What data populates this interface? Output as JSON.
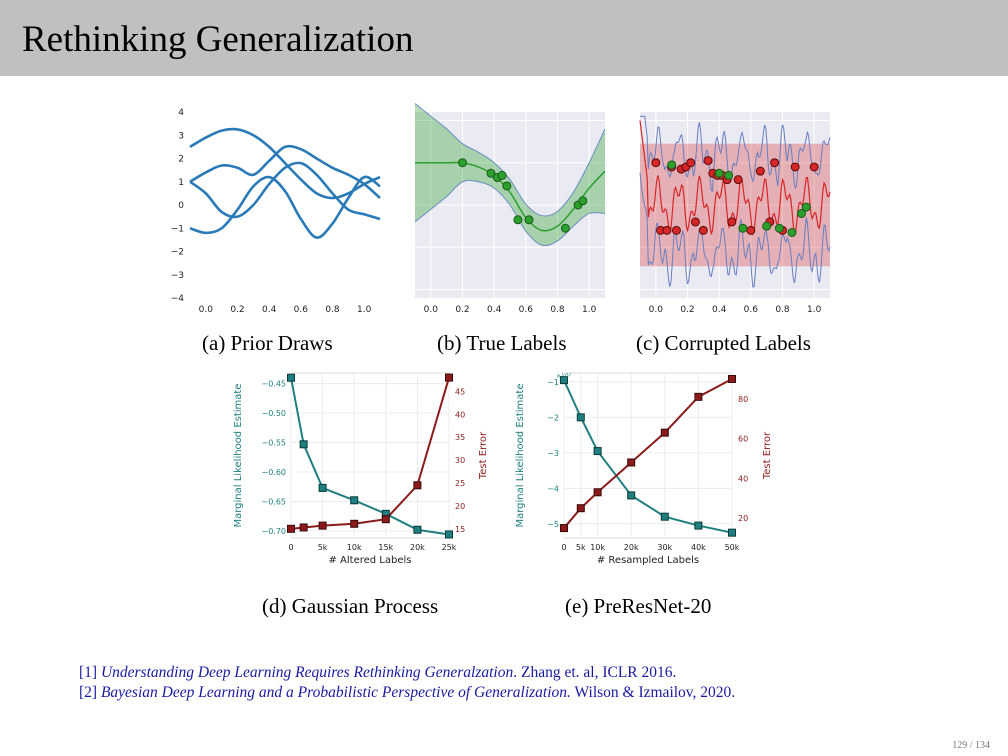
{
  "slide": {
    "title": "Rethinking Generalization",
    "page": "129 / 134"
  },
  "captions": {
    "a": "(a)  Prior Draws",
    "b": "(b)  True Labels",
    "c": "(c)  Corrupted Labels",
    "d": "(d)  Gaussian Process",
    "e": "(e)  PreResNet-20"
  },
  "references": [
    {
      "num": "[1]",
      "title": "Understanding Deep Learning Requires Rethinking Generalzation",
      "rest": ". Zhang et. al, ICLR 2016."
    },
    {
      "num": "[2]",
      "title": "Bayesian Deep Learning and a Probabilistic Perspective of Generalization.",
      "rest": " Wilson & Izmailov, 2020."
    }
  ],
  "colors": {
    "header": "#c0c0c0",
    "teal": "#1f7f7f",
    "darkred": "#8b1a1a",
    "blue": "#2a7ab8",
    "green": "#2ca02c",
    "red": "#d62728",
    "panel_bg": "#eaeaf2"
  },
  "chart_data": [
    {
      "type": "line",
      "id": "prior-draws",
      "xticks": [
        "0.0",
        "0.2",
        "0.4",
        "0.6",
        "0.8",
        "1.0"
      ],
      "yticks": [
        "4",
        "3",
        "2",
        "1",
        "0",
        "−1",
        "−2",
        "−3",
        "−4"
      ],
      "xlim": [
        -0.1,
        1.1
      ],
      "ylim": [
        -4,
        4
      ],
      "series": [
        {
          "x": [
            -0.1,
            0.0,
            0.1,
            0.2,
            0.3,
            0.4,
            0.5,
            0.6,
            0.7,
            0.8,
            0.9,
            1.0,
            1.1
          ],
          "y": [
            2.5,
            2.9,
            3.2,
            3.25,
            3.0,
            2.5,
            1.8,
            1.1,
            0.5,
            0.3,
            0.5,
            0.9,
            1.2
          ]
        },
        {
          "x": [
            -0.1,
            0.0,
            0.1,
            0.2,
            0.3,
            0.4,
            0.5,
            0.6,
            0.7,
            0.8,
            0.9,
            1.0,
            1.1
          ],
          "y": [
            1.0,
            1.4,
            1.7,
            1.6,
            1.3,
            1.9,
            2.5,
            2.4,
            2.0,
            1.6,
            1.3,
            0.9,
            0.3
          ]
        },
        {
          "x": [
            -0.1,
            0.0,
            0.1,
            0.2,
            0.3,
            0.4,
            0.5,
            0.6,
            0.7,
            0.8,
            0.9,
            1.0,
            1.1
          ],
          "y": [
            1.0,
            0.5,
            -0.3,
            -0.5,
            0.0,
            0.9,
            1.6,
            1.8,
            1.3,
            0.5,
            -0.2,
            -0.4,
            -0.6
          ]
        },
        {
          "x": [
            -0.1,
            0.0,
            0.1,
            0.2,
            0.3,
            0.4,
            0.5,
            0.6,
            0.7,
            0.8,
            0.9,
            1.0,
            1.1
          ],
          "y": [
            -1.0,
            -1.2,
            -1.0,
            -0.2,
            0.8,
            1.2,
            0.6,
            -0.6,
            -1.4,
            -0.8,
            0.3,
            1.2,
            0.8
          ]
        }
      ]
    },
    {
      "type": "scatter",
      "id": "true-labels",
      "xticks": [
        "0.0",
        "0.2",
        "0.4",
        "0.6",
        "0.8",
        "1.0"
      ],
      "xlim": [
        -0.1,
        1.1
      ],
      "ylim": [
        -2.2,
        2.2
      ],
      "mean": {
        "x": [
          -0.1,
          0.0,
          0.1,
          0.2,
          0.3,
          0.4,
          0.5,
          0.6,
          0.7,
          0.8,
          0.9,
          1.0,
          1.1
        ],
        "y": [
          1.0,
          1.0,
          1.0,
          1.0,
          0.9,
          0.7,
          0.3,
          -0.3,
          -0.6,
          -0.5,
          -0.1,
          0.4,
          0.8
        ]
      },
      "band_width": [
        1.4,
        1.1,
        0.8,
        0.45,
        0.35,
        0.3,
        0.3,
        0.32,
        0.35,
        0.35,
        0.4,
        0.6,
        1.0
      ],
      "points": [
        [
          0.2,
          1.0
        ],
        [
          0.38,
          0.75
        ],
        [
          0.42,
          0.65
        ],
        [
          0.45,
          0.7
        ],
        [
          0.48,
          0.45
        ],
        [
          0.55,
          -0.35
        ],
        [
          0.62,
          -0.35
        ],
        [
          0.85,
          -0.55
        ],
        [
          0.93,
          0.0
        ],
        [
          0.96,
          0.1
        ]
      ]
    },
    {
      "type": "scatter",
      "id": "corrupted-labels",
      "xticks": [
        "0.0",
        "0.2",
        "0.4",
        "0.6",
        "0.8",
        "1.0"
      ],
      "xlim": [
        -0.1,
        1.1
      ],
      "ylim": [
        -2.2,
        2.2
      ],
      "points_red": [
        [
          0.0,
          1.0
        ],
        [
          0.03,
          -0.6
        ],
        [
          0.07,
          -0.6
        ],
        [
          0.1,
          0.9
        ],
        [
          0.13,
          -0.6
        ],
        [
          0.16,
          0.85
        ],
        [
          0.19,
          0.9
        ],
        [
          0.22,
          1.0
        ],
        [
          0.25,
          -0.4
        ],
        [
          0.3,
          -0.6
        ],
        [
          0.33,
          1.05
        ],
        [
          0.36,
          0.75
        ],
        [
          0.39,
          0.7
        ],
        [
          0.42,
          0.7
        ],
        [
          0.45,
          0.6
        ],
        [
          0.48,
          -0.4
        ],
        [
          0.52,
          0.6
        ],
        [
          0.6,
          -0.6
        ],
        [
          0.66,
          0.8
        ],
        [
          0.72,
          -0.4
        ],
        [
          0.75,
          1.0
        ],
        [
          0.8,
          -0.6
        ],
        [
          0.88,
          0.9
        ],
        [
          1.0,
          0.9
        ]
      ],
      "points_green": [
        [
          0.1,
          0.95
        ],
        [
          0.4,
          0.75
        ],
        [
          0.46,
          0.7
        ],
        [
          0.55,
          -0.55
        ],
        [
          0.7,
          -0.5
        ],
        [
          0.78,
          -0.55
        ],
        [
          0.86,
          -0.65
        ],
        [
          0.92,
          -0.2
        ],
        [
          0.95,
          -0.05
        ]
      ]
    },
    {
      "type": "line",
      "id": "gaussian-process",
      "xlabel": "# Altered Labels",
      "ylabel_left": "Marginal Likelihood Estimate",
      "ylabel_right": "Test Error",
      "xticks": [
        "0",
        "5k",
        "10k",
        "15k",
        "20k",
        "25k"
      ],
      "yticks_left": [
        "−0.45",
        "−0.50",
        "−0.55",
        "−0.60",
        "−0.65",
        "−0.70"
      ],
      "yticks_right": [
        "45",
        "40",
        "35",
        "30",
        "25",
        "20",
        "15"
      ],
      "x": [
        0,
        2000,
        5000,
        10000,
        15000,
        20000,
        25000
      ],
      "series": [
        {
          "name": "Marginal Likelihood Estimate",
          "values": [
            -0.44,
            -0.553,
            -0.627,
            -0.648,
            -0.671,
            -0.698,
            -0.706
          ]
        },
        {
          "name": "Test Error",
          "values": [
            15.0,
            15.3,
            15.7,
            16.1,
            17.1,
            24.5,
            48.0
          ]
        }
      ]
    },
    {
      "type": "line",
      "id": "preresnet-20",
      "xlabel": "# Resampled Labels",
      "ylabel_left": "Marginal Likelihood Estimate",
      "ylabel_right": "Test Error",
      "scale_note": "×10⁷",
      "xticks": [
        "0",
        "5k",
        "10k",
        "20k",
        "30k",
        "40k",
        "50k"
      ],
      "yticks_left": [
        "−1",
        "−2",
        "−3",
        "−4",
        "−5"
      ],
      "yticks_right": [
        "80",
        "60",
        "40",
        "20"
      ],
      "x": [
        0,
        5000,
        10000,
        20000,
        30000,
        40000,
        50000
      ],
      "series": [
        {
          "name": "Marginal Likelihood Estimate",
          "values": [
            -0.95,
            -2.0,
            -2.95,
            -4.2,
            -4.8,
            -5.05,
            -5.25
          ]
        },
        {
          "name": "Test Error",
          "values": [
            15,
            25,
            33,
            48,
            63,
            81,
            90
          ]
        }
      ]
    }
  ]
}
